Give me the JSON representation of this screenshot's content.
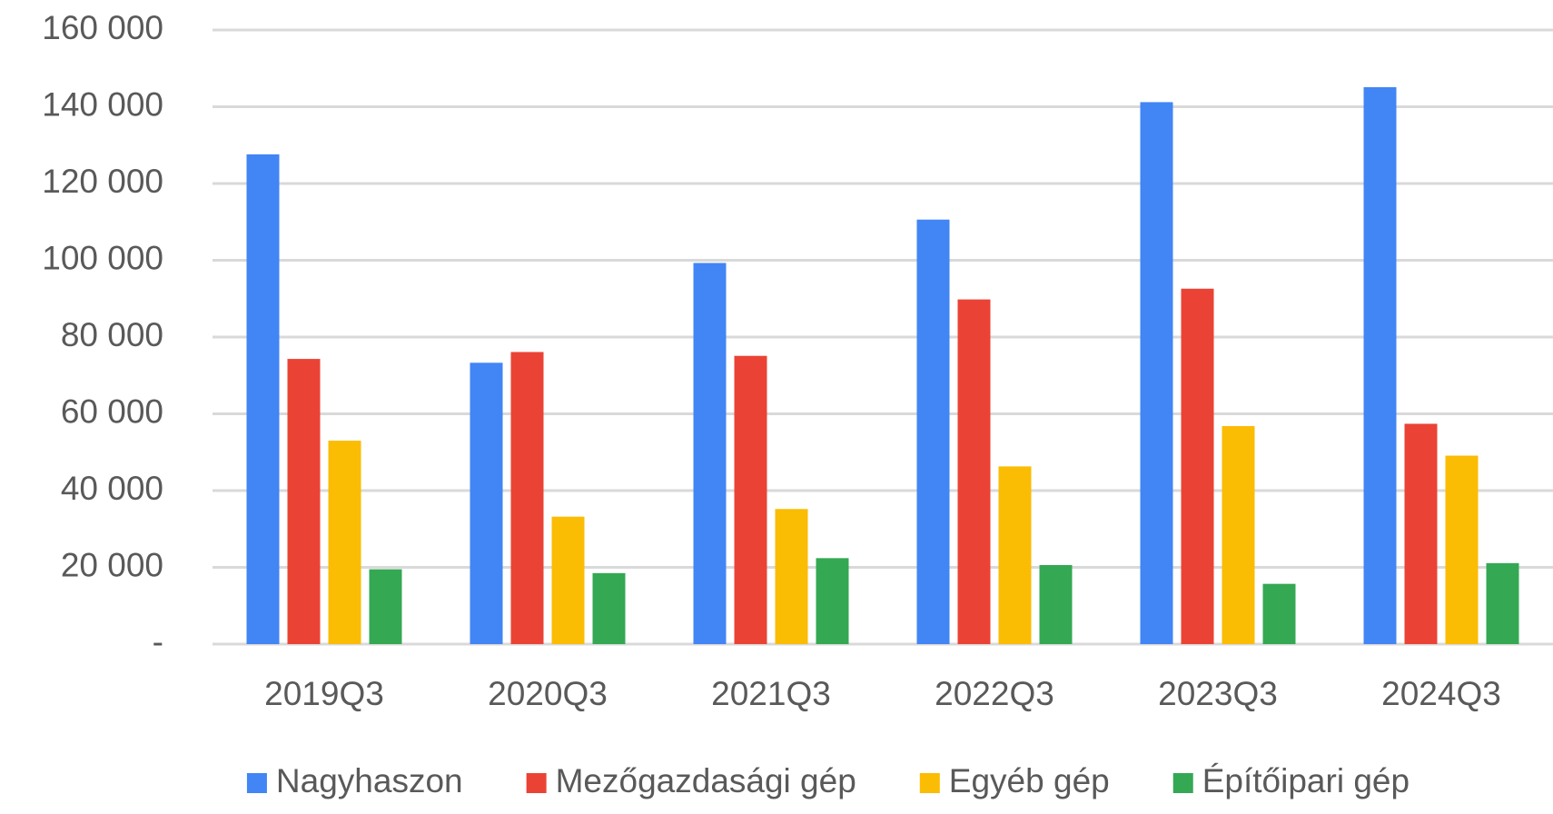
{
  "chart_data": {
    "type": "bar",
    "categories": [
      "2019Q3",
      "2020Q3",
      "2021Q3",
      "2022Q3",
      "2023Q3",
      "2024Q3"
    ],
    "series": [
      {
        "name": "Nagyhaszon",
        "color": "#4285f4",
        "values": [
          127600,
          73300,
          99300,
          110600,
          141200,
          145100
        ]
      },
      {
        "name": "Mezőgazdasági gép",
        "color": "#ea4335",
        "values": [
          74300,
          76100,
          75100,
          89800,
          92600,
          57400
        ]
      },
      {
        "name": "Egyéb gép",
        "color": "#fbbc04",
        "values": [
          53000,
          33200,
          35200,
          46300,
          56800,
          49100
        ]
      },
      {
        "name": "Építőipari gép",
        "color": "#34a853",
        "values": [
          19500,
          18500,
          22400,
          20600,
          15700,
          21100
        ]
      }
    ],
    "ylim": [
      0,
      160000
    ],
    "yticks": [
      {
        "value": 0,
        "label": "-"
      },
      {
        "value": 20000,
        "label": "20 000"
      },
      {
        "value": 40000,
        "label": "40 000"
      },
      {
        "value": 60000,
        "label": "60 000"
      },
      {
        "value": 80000,
        "label": "80 000"
      },
      {
        "value": 100000,
        "label": "100 000"
      },
      {
        "value": 120000,
        "label": "120 000"
      },
      {
        "value": 140000,
        "label": "140 000"
      },
      {
        "value": 160000,
        "label": "160 000"
      }
    ],
    "grid": true,
    "legend": "bottom"
  }
}
